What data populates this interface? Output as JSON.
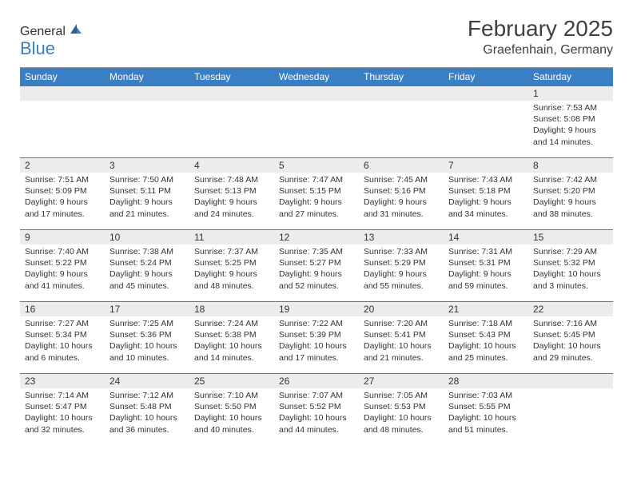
{
  "logo": {
    "text1": "General",
    "text2": "Blue"
  },
  "title": "February 2025",
  "location": "Graefenhain, Germany",
  "colors": {
    "header_bg": "#3a7fc4",
    "header_text": "#ffffff",
    "daynum_bg": "#ececec",
    "row_border": "#3a7fc4",
    "page_bg": "#ffffff",
    "text": "#333333",
    "logo_gray": "#5a5a5a",
    "logo_blue": "#3a7fc4"
  },
  "day_headers": [
    "Sunday",
    "Monday",
    "Tuesday",
    "Wednesday",
    "Thursday",
    "Friday",
    "Saturday"
  ],
  "weeks": [
    [
      null,
      null,
      null,
      null,
      null,
      null,
      {
        "n": "1",
        "sunrise": "Sunrise: 7:53 AM",
        "sunset": "Sunset: 5:08 PM",
        "daylight": "Daylight: 9 hours and 14 minutes."
      }
    ],
    [
      {
        "n": "2",
        "sunrise": "Sunrise: 7:51 AM",
        "sunset": "Sunset: 5:09 PM",
        "daylight": "Daylight: 9 hours and 17 minutes."
      },
      {
        "n": "3",
        "sunrise": "Sunrise: 7:50 AM",
        "sunset": "Sunset: 5:11 PM",
        "daylight": "Daylight: 9 hours and 21 minutes."
      },
      {
        "n": "4",
        "sunrise": "Sunrise: 7:48 AM",
        "sunset": "Sunset: 5:13 PM",
        "daylight": "Daylight: 9 hours and 24 minutes."
      },
      {
        "n": "5",
        "sunrise": "Sunrise: 7:47 AM",
        "sunset": "Sunset: 5:15 PM",
        "daylight": "Daylight: 9 hours and 27 minutes."
      },
      {
        "n": "6",
        "sunrise": "Sunrise: 7:45 AM",
        "sunset": "Sunset: 5:16 PM",
        "daylight": "Daylight: 9 hours and 31 minutes."
      },
      {
        "n": "7",
        "sunrise": "Sunrise: 7:43 AM",
        "sunset": "Sunset: 5:18 PM",
        "daylight": "Daylight: 9 hours and 34 minutes."
      },
      {
        "n": "8",
        "sunrise": "Sunrise: 7:42 AM",
        "sunset": "Sunset: 5:20 PM",
        "daylight": "Daylight: 9 hours and 38 minutes."
      }
    ],
    [
      {
        "n": "9",
        "sunrise": "Sunrise: 7:40 AM",
        "sunset": "Sunset: 5:22 PM",
        "daylight": "Daylight: 9 hours and 41 minutes."
      },
      {
        "n": "10",
        "sunrise": "Sunrise: 7:38 AM",
        "sunset": "Sunset: 5:24 PM",
        "daylight": "Daylight: 9 hours and 45 minutes."
      },
      {
        "n": "11",
        "sunrise": "Sunrise: 7:37 AM",
        "sunset": "Sunset: 5:25 PM",
        "daylight": "Daylight: 9 hours and 48 minutes."
      },
      {
        "n": "12",
        "sunrise": "Sunrise: 7:35 AM",
        "sunset": "Sunset: 5:27 PM",
        "daylight": "Daylight: 9 hours and 52 minutes."
      },
      {
        "n": "13",
        "sunrise": "Sunrise: 7:33 AM",
        "sunset": "Sunset: 5:29 PM",
        "daylight": "Daylight: 9 hours and 55 minutes."
      },
      {
        "n": "14",
        "sunrise": "Sunrise: 7:31 AM",
        "sunset": "Sunset: 5:31 PM",
        "daylight": "Daylight: 9 hours and 59 minutes."
      },
      {
        "n": "15",
        "sunrise": "Sunrise: 7:29 AM",
        "sunset": "Sunset: 5:32 PM",
        "daylight": "Daylight: 10 hours and 3 minutes."
      }
    ],
    [
      {
        "n": "16",
        "sunrise": "Sunrise: 7:27 AM",
        "sunset": "Sunset: 5:34 PM",
        "daylight": "Daylight: 10 hours and 6 minutes."
      },
      {
        "n": "17",
        "sunrise": "Sunrise: 7:25 AM",
        "sunset": "Sunset: 5:36 PM",
        "daylight": "Daylight: 10 hours and 10 minutes."
      },
      {
        "n": "18",
        "sunrise": "Sunrise: 7:24 AM",
        "sunset": "Sunset: 5:38 PM",
        "daylight": "Daylight: 10 hours and 14 minutes."
      },
      {
        "n": "19",
        "sunrise": "Sunrise: 7:22 AM",
        "sunset": "Sunset: 5:39 PM",
        "daylight": "Daylight: 10 hours and 17 minutes."
      },
      {
        "n": "20",
        "sunrise": "Sunrise: 7:20 AM",
        "sunset": "Sunset: 5:41 PM",
        "daylight": "Daylight: 10 hours and 21 minutes."
      },
      {
        "n": "21",
        "sunrise": "Sunrise: 7:18 AM",
        "sunset": "Sunset: 5:43 PM",
        "daylight": "Daylight: 10 hours and 25 minutes."
      },
      {
        "n": "22",
        "sunrise": "Sunrise: 7:16 AM",
        "sunset": "Sunset: 5:45 PM",
        "daylight": "Daylight: 10 hours and 29 minutes."
      }
    ],
    [
      {
        "n": "23",
        "sunrise": "Sunrise: 7:14 AM",
        "sunset": "Sunset: 5:47 PM",
        "daylight": "Daylight: 10 hours and 32 minutes."
      },
      {
        "n": "24",
        "sunrise": "Sunrise: 7:12 AM",
        "sunset": "Sunset: 5:48 PM",
        "daylight": "Daylight: 10 hours and 36 minutes."
      },
      {
        "n": "25",
        "sunrise": "Sunrise: 7:10 AM",
        "sunset": "Sunset: 5:50 PM",
        "daylight": "Daylight: 10 hours and 40 minutes."
      },
      {
        "n": "26",
        "sunrise": "Sunrise: 7:07 AM",
        "sunset": "Sunset: 5:52 PM",
        "daylight": "Daylight: 10 hours and 44 minutes."
      },
      {
        "n": "27",
        "sunrise": "Sunrise: 7:05 AM",
        "sunset": "Sunset: 5:53 PM",
        "daylight": "Daylight: 10 hours and 48 minutes."
      },
      {
        "n": "28",
        "sunrise": "Sunrise: 7:03 AM",
        "sunset": "Sunset: 5:55 PM",
        "daylight": "Daylight: 10 hours and 51 minutes."
      },
      null
    ]
  ]
}
